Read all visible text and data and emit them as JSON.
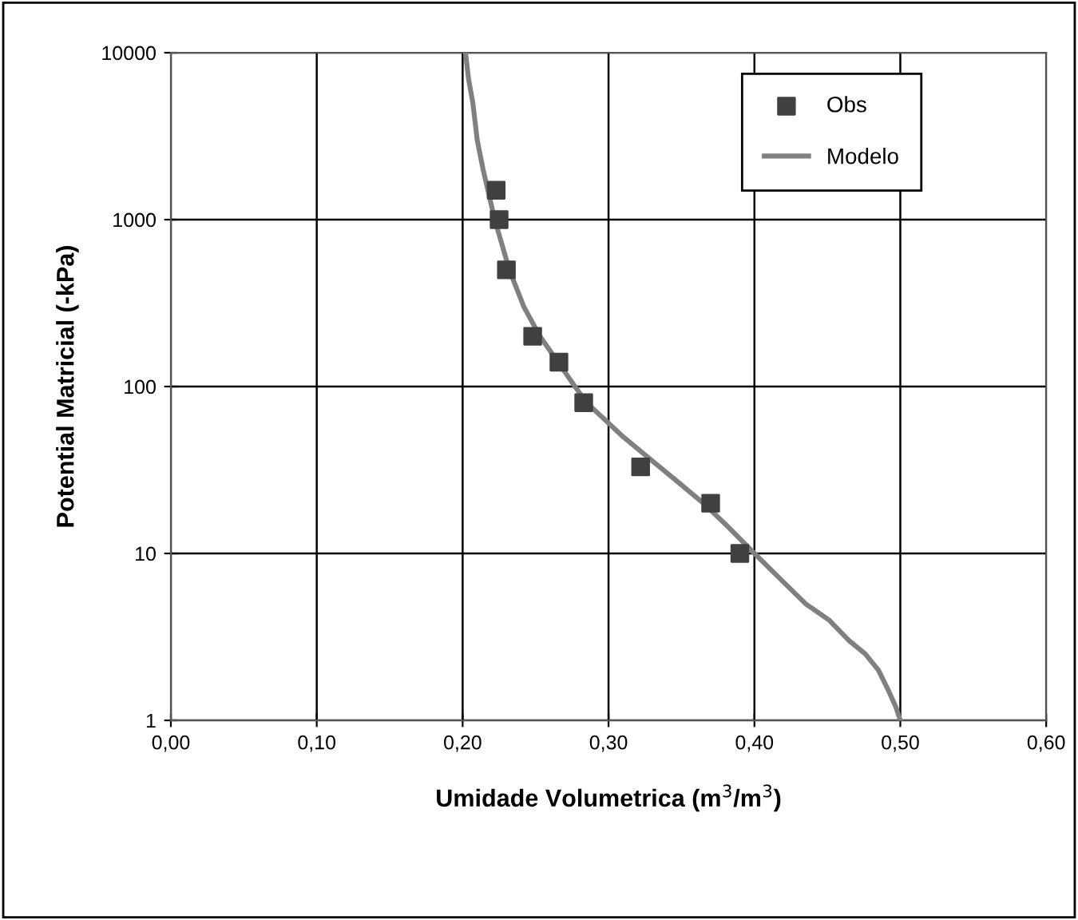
{
  "chart_data": {
    "type": "line",
    "xlabel": "Umidade Volumetrica (m$^{3}$/m$^{3}$)",
    "ylabel": "Potential Matricial (-kPa)",
    "log": "y",
    "grid": true,
    "legend": "top right",
    "xlim": [
      0,
      0.6
    ],
    "xticks": [
      {
        "value": 0,
        "label": "0,00"
      },
      {
        "value": 0.1,
        "label": "0,10"
      },
      {
        "value": 0.2,
        "label": "0,20"
      },
      {
        "value": 0.3,
        "label": "0,30"
      },
      {
        "value": 0.4,
        "label": "0,40"
      },
      {
        "value": 0.5,
        "label": "0,50"
      },
      {
        "value": 0.6,
        "label": "0,60"
      }
    ],
    "ylim": [
      1,
      10000
    ],
    "yticks": [
      1,
      10,
      100,
      1000,
      10000
    ],
    "series": [
      {
        "name": "Obs",
        "type": "scatter",
        "marker": "square",
        "color": "#404040",
        "x": [
          0.223,
          0.225,
          0.23,
          0.248,
          0.266,
          0.283,
          0.322,
          0.37,
          0.39
        ],
        "values": [
          1500,
          1000,
          500,
          200,
          140,
          80,
          33,
          20,
          10
        ]
      },
      {
        "name": "Modelo",
        "marker": "none",
        "color": "#808080",
        "x": [
          0.5,
          0.497,
          0.492,
          0.485,
          0.476,
          0.465,
          0.451,
          0.435,
          0.418,
          0.4,
          0.38,
          0.365,
          0.345,
          0.335,
          0.31,
          0.285,
          0.277,
          0.253,
          0.242,
          0.232,
          0.222,
          0.214,
          0.21,
          0.207,
          0.204,
          0.202
        ],
        "values": [
          1,
          1.2,
          1.5,
          2,
          2.5,
          3,
          4,
          5,
          7,
          10,
          15,
          20,
          28,
          33,
          50,
          80,
          100,
          200,
          300,
          500,
          1000,
          2000,
          3000,
          5000,
          7000,
          10000
        ]
      }
    ]
  }
}
